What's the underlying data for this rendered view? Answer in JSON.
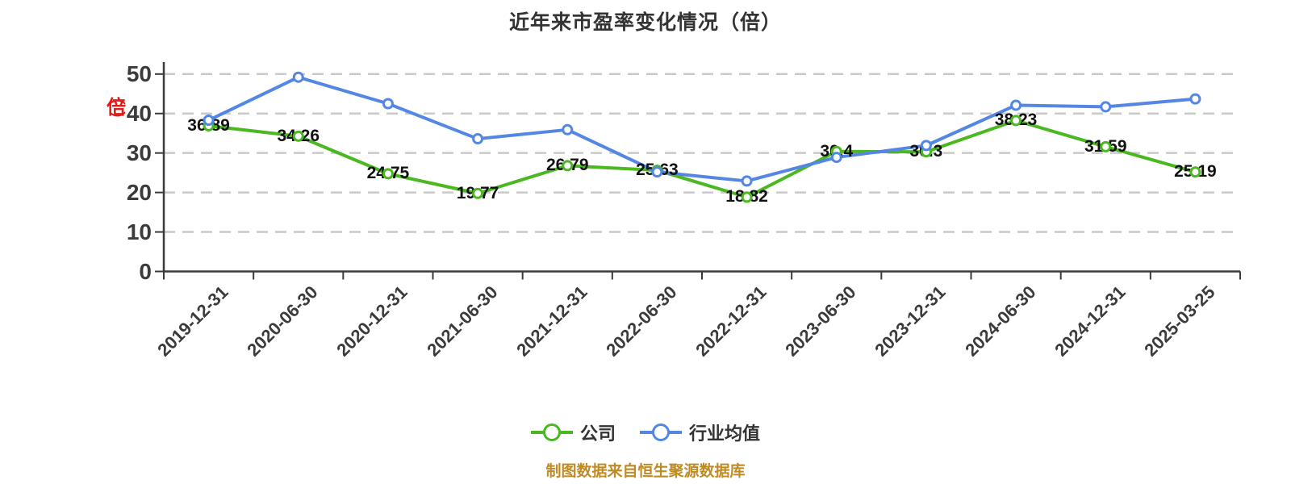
{
  "title": "近年来市盈率变化情况（倍）",
  "y_axis_label": "（倍）",
  "footer": "制图数据来自恒生聚源数据库",
  "colors": {
    "company_series": "#4bb822",
    "industry_series": "#5487e4",
    "grid": "#c9c9c9",
    "axis_text": "#3b3b3b",
    "data_label": "#111111",
    "y_axis_label_red": "#e31b1b",
    "footer_gold": "#bf8b23",
    "marker_fill": "#ffffff"
  },
  "chart_data": {
    "type": "line",
    "title": "近年来市盈率变化情况（倍）",
    "categories": [
      "2019-12-31",
      "2020-06-30",
      "2020-12-31",
      "2021-06-30",
      "2021-12-31",
      "2022-06-30",
      "2022-12-31",
      "2023-06-30",
      "2023-12-31",
      "2024-06-30",
      "2024-12-31",
      "2025-03-25"
    ],
    "series": [
      {
        "name": "公司",
        "color": "#4bb822",
        "labeled": true,
        "values": [
          36.89,
          34.26,
          24.75,
          19.77,
          26.79,
          25.63,
          18.82,
          30.4,
          30.3,
          38.23,
          31.59,
          25.19
        ]
      },
      {
        "name": "行业均值",
        "color": "#5487e4",
        "labeled": false,
        "values": [
          38.3,
          49.2,
          42.5,
          33.6,
          35.9,
          25.2,
          22.9,
          28.9,
          31.9,
          42.1,
          41.7,
          43.7
        ]
      }
    ],
    "xlabel": "",
    "ylabel": "（倍）",
    "ylim": [
      0,
      50
    ],
    "yticks": [
      0,
      10,
      20,
      30,
      40,
      50
    ],
    "grid": "horizontal dashed",
    "legend_position": "bottom",
    "x_label_rotation": -45
  }
}
